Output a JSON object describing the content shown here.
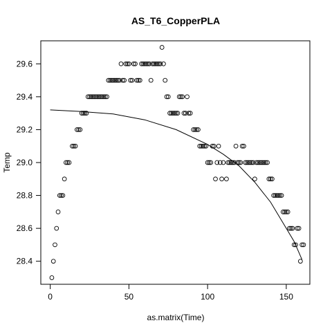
{
  "chart_data": {
    "type": "scatter",
    "title": "AS_T6_CopperPLA",
    "xlabel": "as.matrix(Time)",
    "ylabel": "Temp",
    "xlim": [
      -6,
      165
    ],
    "ylim": [
      28.26,
      29.74
    ],
    "xticks": [
      0,
      50,
      100,
      150
    ],
    "yticks": [
      28.4,
      28.6,
      28.8,
      29.0,
      29.2,
      29.4,
      29.6
    ],
    "ytick_labels": [
      "28.4",
      "28.6",
      "28.8",
      "29.0",
      "29.2",
      "29.4",
      "29.6"
    ],
    "grid": false,
    "points": [
      [
        1,
        28.3
      ],
      [
        2,
        28.4
      ],
      [
        3,
        28.5
      ],
      [
        4,
        28.6
      ],
      [
        5,
        28.7
      ],
      [
        6,
        28.8
      ],
      [
        7,
        28.8
      ],
      [
        8,
        28.8
      ],
      [
        9,
        28.9
      ],
      [
        10,
        29.0
      ],
      [
        11,
        29.0
      ],
      [
        12,
        29.0
      ],
      [
        14,
        29.1
      ],
      [
        15,
        29.1
      ],
      [
        16,
        29.1
      ],
      [
        17,
        29.2
      ],
      [
        18,
        29.2
      ],
      [
        19,
        29.2
      ],
      [
        20,
        29.3
      ],
      [
        21,
        29.3
      ],
      [
        22,
        29.3
      ],
      [
        23,
        29.3
      ],
      [
        24,
        29.4
      ],
      [
        25,
        29.4
      ],
      [
        26,
        29.4
      ],
      [
        27,
        29.4
      ],
      [
        28,
        29.4
      ],
      [
        29,
        29.4
      ],
      [
        30,
        29.4
      ],
      [
        31,
        29.4
      ],
      [
        32,
        29.4
      ],
      [
        33,
        29.4
      ],
      [
        34,
        29.4
      ],
      [
        35,
        29.4
      ],
      [
        36,
        29.4
      ],
      [
        37,
        29.5
      ],
      [
        38,
        29.5
      ],
      [
        39,
        29.5
      ],
      [
        40,
        29.5
      ],
      [
        41,
        29.5
      ],
      [
        42,
        29.5
      ],
      [
        43,
        29.5
      ],
      [
        44,
        29.5
      ],
      [
        45,
        29.6
      ],
      [
        46,
        29.5
      ],
      [
        47,
        29.5
      ],
      [
        48,
        29.6
      ],
      [
        49,
        29.6
      ],
      [
        50,
        29.6
      ],
      [
        51,
        29.5
      ],
      [
        52,
        29.5
      ],
      [
        53,
        29.6
      ],
      [
        54,
        29.6
      ],
      [
        55,
        29.5
      ],
      [
        56,
        29.5
      ],
      [
        57,
        29.5
      ],
      [
        58,
        29.6
      ],
      [
        59,
        29.6
      ],
      [
        60,
        29.6
      ],
      [
        61,
        29.6
      ],
      [
        62,
        29.6
      ],
      [
        63,
        29.6
      ],
      [
        64,
        29.5
      ],
      [
        65,
        29.6
      ],
      [
        66,
        29.6
      ],
      [
        67,
        29.6
      ],
      [
        68,
        29.6
      ],
      [
        69,
        29.6
      ],
      [
        70,
        29.6
      ],
      [
        71,
        29.7
      ],
      [
        72,
        29.6
      ],
      [
        73,
        29.5
      ],
      [
        74,
        29.4
      ],
      [
        75,
        29.4
      ],
      [
        76,
        29.3
      ],
      [
        77,
        29.3
      ],
      [
        78,
        29.3
      ],
      [
        79,
        29.3
      ],
      [
        80,
        29.3
      ],
      [
        81,
        29.3
      ],
      [
        82,
        29.4
      ],
      [
        83,
        29.4
      ],
      [
        84,
        29.4
      ],
      [
        85,
        29.3
      ],
      [
        86,
        29.3
      ],
      [
        87,
        29.4
      ],
      [
        88,
        29.3
      ],
      [
        89,
        29.3
      ],
      [
        91,
        29.2
      ],
      [
        92,
        29.2
      ],
      [
        93,
        29.2
      ],
      [
        94,
        29.2
      ],
      [
        95,
        29.1
      ],
      [
        96,
        29.1
      ],
      [
        97,
        29.1
      ],
      [
        98,
        29.1
      ],
      [
        99,
        29.1
      ],
      [
        100,
        29.0
      ],
      [
        101,
        29.0
      ],
      [
        102,
        29.0
      ],
      [
        103,
        29.1
      ],
      [
        104,
        29.1
      ],
      [
        105,
        28.9
      ],
      [
        106,
        29.0
      ],
      [
        107,
        29.1
      ],
      [
        108,
        29.0
      ],
      [
        109,
        28.9
      ],
      [
        110,
        29.0
      ],
      [
        112,
        28.9
      ],
      [
        113,
        29.0
      ],
      [
        114,
        29.0
      ],
      [
        115,
        29.0
      ],
      [
        116,
        29.0
      ],
      [
        117,
        29.0
      ],
      [
        118,
        29.1
      ],
      [
        119,
        29.0
      ],
      [
        120,
        29.0
      ],
      [
        121,
        29.0
      ],
      [
        122,
        29.1
      ],
      [
        123,
        29.1
      ],
      [
        124,
        29.0
      ],
      [
        125,
        29.0
      ],
      [
        126,
        29.0
      ],
      [
        127,
        29.0
      ],
      [
        128,
        29.0
      ],
      [
        129,
        29.0
      ],
      [
        130,
        28.9
      ],
      [
        131,
        29.0
      ],
      [
        132,
        29.0
      ],
      [
        133,
        29.0
      ],
      [
        134,
        29.0
      ],
      [
        135,
        29.0
      ],
      [
        136,
        29.0
      ],
      [
        137,
        29.0
      ],
      [
        138,
        29.0
      ],
      [
        139,
        28.9
      ],
      [
        140,
        28.9
      ],
      [
        141,
        28.9
      ],
      [
        142,
        28.8
      ],
      [
        143,
        28.8
      ],
      [
        144,
        28.8
      ],
      [
        145,
        28.8
      ],
      [
        146,
        28.8
      ],
      [
        147,
        28.8
      ],
      [
        148,
        28.7
      ],
      [
        149,
        28.7
      ],
      [
        150,
        28.7
      ],
      [
        151,
        28.7
      ],
      [
        152,
        28.6
      ],
      [
        153,
        28.6
      ],
      [
        154,
        28.6
      ],
      [
        155,
        28.5
      ],
      [
        156,
        28.5
      ],
      [
        157,
        28.6
      ],
      [
        158,
        28.6
      ],
      [
        159,
        28.4
      ],
      [
        160,
        28.5
      ],
      [
        161,
        28.5
      ]
    ],
    "fit_curve": [
      [
        0,
        29.32
      ],
      [
        20,
        29.31
      ],
      [
        40,
        29.295
      ],
      [
        60,
        29.26
      ],
      [
        80,
        29.2
      ],
      [
        100,
        29.11
      ],
      [
        110,
        29.05
      ],
      [
        120,
        28.98
      ],
      [
        130,
        28.88
      ],
      [
        140,
        28.76
      ],
      [
        150,
        28.6
      ],
      [
        155,
        28.52
      ],
      [
        160,
        28.41
      ]
    ]
  }
}
